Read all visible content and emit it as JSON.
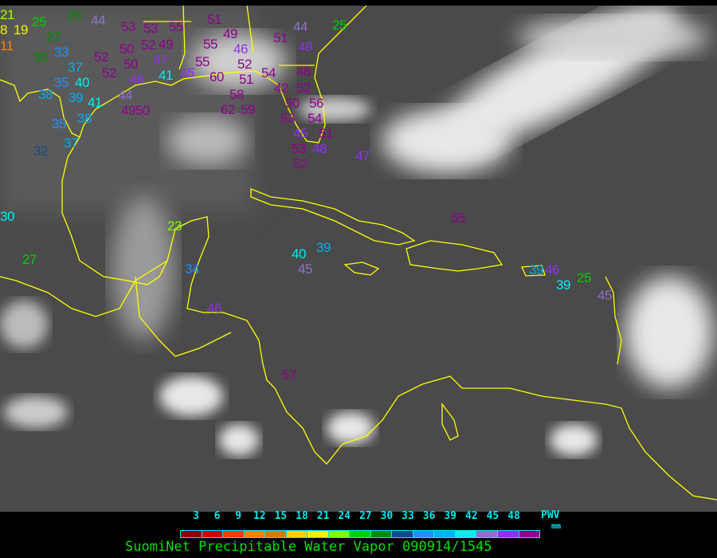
{
  "title": "SuomiNet Precipitable Water Vapor 090914/1545",
  "legend": {
    "unit_label": "PWV",
    "unit": "mm",
    "ticks": [
      "3",
      "6",
      "9",
      "12",
      "15",
      "18",
      "21",
      "24",
      "27",
      "30",
      "33",
      "36",
      "39",
      "42",
      "45",
      "48"
    ],
    "colors": [
      "#8b0000",
      "#d00000",
      "#f04000",
      "#ff8000",
      "#d08000",
      "#ffd000",
      "#f0f000",
      "#80ff00",
      "#00d000",
      "#008c00",
      "#104c8c",
      "#2090ff",
      "#00b0f0",
      "#00f0f0",
      "#9070d0",
      "#9030f0",
      "#900090"
    ]
  },
  "map": {
    "background": "#4a4a4a",
    "coastline_color": "#ffff00"
  },
  "stations": [
    {
      "value": "21",
      "color": "#a0ff00"
    },
    {
      "value": "19",
      "color": "#f0f000"
    },
    {
      "value": "8",
      "color": "#f0f000"
    },
    {
      "value": "25",
      "color": "#00d000"
    },
    {
      "value": "27",
      "color": "#008c00"
    },
    {
      "value": "28",
      "color": "#008c00"
    },
    {
      "value": "11",
      "color": "#ff8000"
    },
    {
      "value": "33",
      "color": "#2090ff"
    },
    {
      "value": "37",
      "color": "#00b0f0"
    },
    {
      "value": "30",
      "color": "#008c00"
    },
    {
      "value": "35",
      "color": "#2090ff"
    },
    {
      "value": "40",
      "color": "#00f0f0"
    },
    {
      "value": "52",
      "color": "#900090"
    },
    {
      "value": "52",
      "color": "#900090"
    },
    {
      "value": "50",
      "color": "#900090"
    },
    {
      "value": "50",
      "color": "#900090"
    },
    {
      "value": "52",
      "color": "#900090"
    },
    {
      "value": "49",
      "color": "#900090"
    },
    {
      "value": "47",
      "color": "#9030f0"
    },
    {
      "value": "41",
      "color": "#00f0f0"
    },
    {
      "value": "46",
      "color": "#9030f0"
    },
    {
      "value": "44",
      "color": "#9070d0"
    },
    {
      "value": "38",
      "color": "#00b0f0"
    },
    {
      "value": "39",
      "color": "#00b0f0"
    },
    {
      "value": "41",
      "color": "#00f0f0"
    },
    {
      "value": "38",
      "color": "#00b0f0"
    },
    {
      "value": "35",
      "color": "#2090ff"
    },
    {
      "value": "37",
      "color": "#00b0f0"
    },
    {
      "value": "32",
      "color": "#104c8c"
    },
    {
      "value": "44",
      "color": "#9070d0"
    },
    {
      "value": "53",
      "color": "#900090"
    },
    {
      "value": "4950",
      "color": "#900090"
    },
    {
      "value": "53",
      "color": "#900090"
    },
    {
      "value": "55",
      "color": "#900090"
    },
    {
      "value": "51",
      "color": "#900090"
    },
    {
      "value": "49",
      "color": "#900090"
    },
    {
      "value": "46",
      "color": "#9030f0"
    },
    {
      "value": "52",
      "color": "#900090"
    },
    {
      "value": "51",
      "color": "#900090"
    },
    {
      "value": "55",
      "color": "#900090"
    },
    {
      "value": "55",
      "color": "#900090"
    },
    {
      "value": "60",
      "color": "#900090"
    },
    {
      "value": "58",
      "color": "#900090"
    },
    {
      "value": "62",
      "color": "#900090"
    },
    {
      "value": "59",
      "color": "#900090"
    },
    {
      "value": "54",
      "color": "#900090"
    },
    {
      "value": "42",
      "color": "#900090"
    },
    {
      "value": "50",
      "color": "#900090"
    },
    {
      "value": "48",
      "color": "#900090"
    },
    {
      "value": "51",
      "color": "#900090"
    },
    {
      "value": "44",
      "color": "#9070d0"
    },
    {
      "value": "48",
      "color": "#9030f0"
    },
    {
      "value": "25",
      "color": "#00d000"
    },
    {
      "value": "52",
      "color": "#900090"
    },
    {
      "value": "56",
      "color": "#900090"
    },
    {
      "value": "53",
      "color": "#900090"
    },
    {
      "value": "45",
      "color": "#9030f0"
    },
    {
      "value": "54",
      "color": "#900090"
    },
    {
      "value": "51",
      "color": "#900090"
    },
    {
      "value": "53",
      "color": "#900090"
    },
    {
      "value": "52",
      "color": "#900090"
    },
    {
      "value": "48",
      "color": "#9030f0"
    },
    {
      "value": "45",
      "color": "#9030f0"
    },
    {
      "value": "47",
      "color": "#9030f0"
    },
    {
      "value": "55",
      "color": "#900090"
    },
    {
      "value": "23",
      "color": "#80ff00"
    },
    {
      "value": "27",
      "color": "#00d000"
    },
    {
      "value": "30",
      "color": "#00f0f0"
    },
    {
      "value": "40",
      "color": "#00f0f0"
    },
    {
      "value": "45",
      "color": "#9070d0"
    },
    {
      "value": "39",
      "color": "#00b0f0"
    },
    {
      "value": "34",
      "color": "#2090ff"
    },
    {
      "value": "39",
      "color": "#00b0f0"
    },
    {
      "value": "46",
      "color": "#9030f0"
    },
    {
      "value": "39",
      "color": "#00f0f0"
    },
    {
      "value": "25",
      "color": "#00d000"
    },
    {
      "value": "45",
      "color": "#9070d0"
    },
    {
      "value": "46",
      "color": "#9030f0"
    },
    {
      "value": "57",
      "color": "#900090"
    }
  ]
}
